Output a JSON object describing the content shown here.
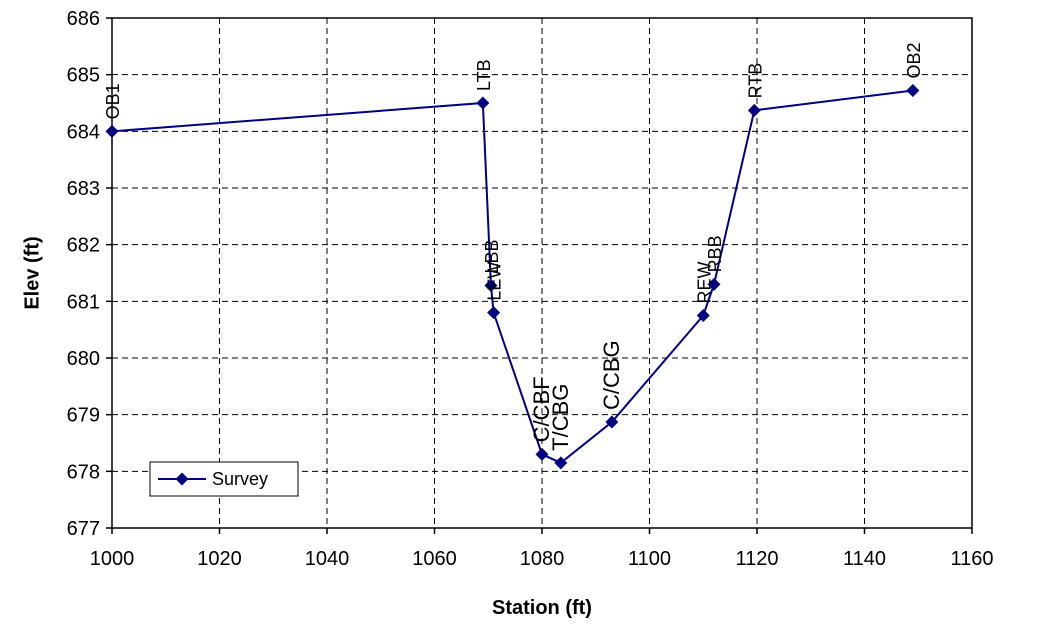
{
  "chart_data": {
    "type": "line",
    "title": "",
    "xlabel": "Station (ft)",
    "ylabel": "Elev (ft)",
    "xlim": [
      1000,
      1160
    ],
    "ylim": [
      677,
      686
    ],
    "xticks": [
      1000,
      1020,
      1040,
      1060,
      1080,
      1100,
      1120,
      1140,
      1160
    ],
    "yticks": [
      677,
      678,
      679,
      680,
      681,
      682,
      683,
      684,
      685,
      686
    ],
    "grid": true,
    "legend_position": "bottom-left",
    "series": [
      {
        "name": "Survey",
        "color": "#000080",
        "marker": "diamond",
        "points": [
          {
            "x": 1000,
            "y": 684.0,
            "label": "OB1"
          },
          {
            "x": 1069,
            "y": 684.5,
            "label": "LTB"
          },
          {
            "x": 1070.5,
            "y": 681.28,
            "label": "LBB"
          },
          {
            "x": 1071,
            "y": 680.8,
            "label": "LEW"
          },
          {
            "x": 1080,
            "y": 678.3,
            "label": "C/CBF"
          },
          {
            "x": 1083.5,
            "y": 678.15,
            "label": "T/CBG"
          },
          {
            "x": 1093,
            "y": 678.87,
            "label": "C/CBG"
          },
          {
            "x": 1110,
            "y": 680.75,
            "label": "REW"
          },
          {
            "x": 1112,
            "y": 681.3,
            "label": "RBB"
          },
          {
            "x": 1119.5,
            "y": 684.37,
            "label": "RTB"
          },
          {
            "x": 1149,
            "y": 684.72,
            "label": "OB2"
          }
        ]
      }
    ]
  }
}
